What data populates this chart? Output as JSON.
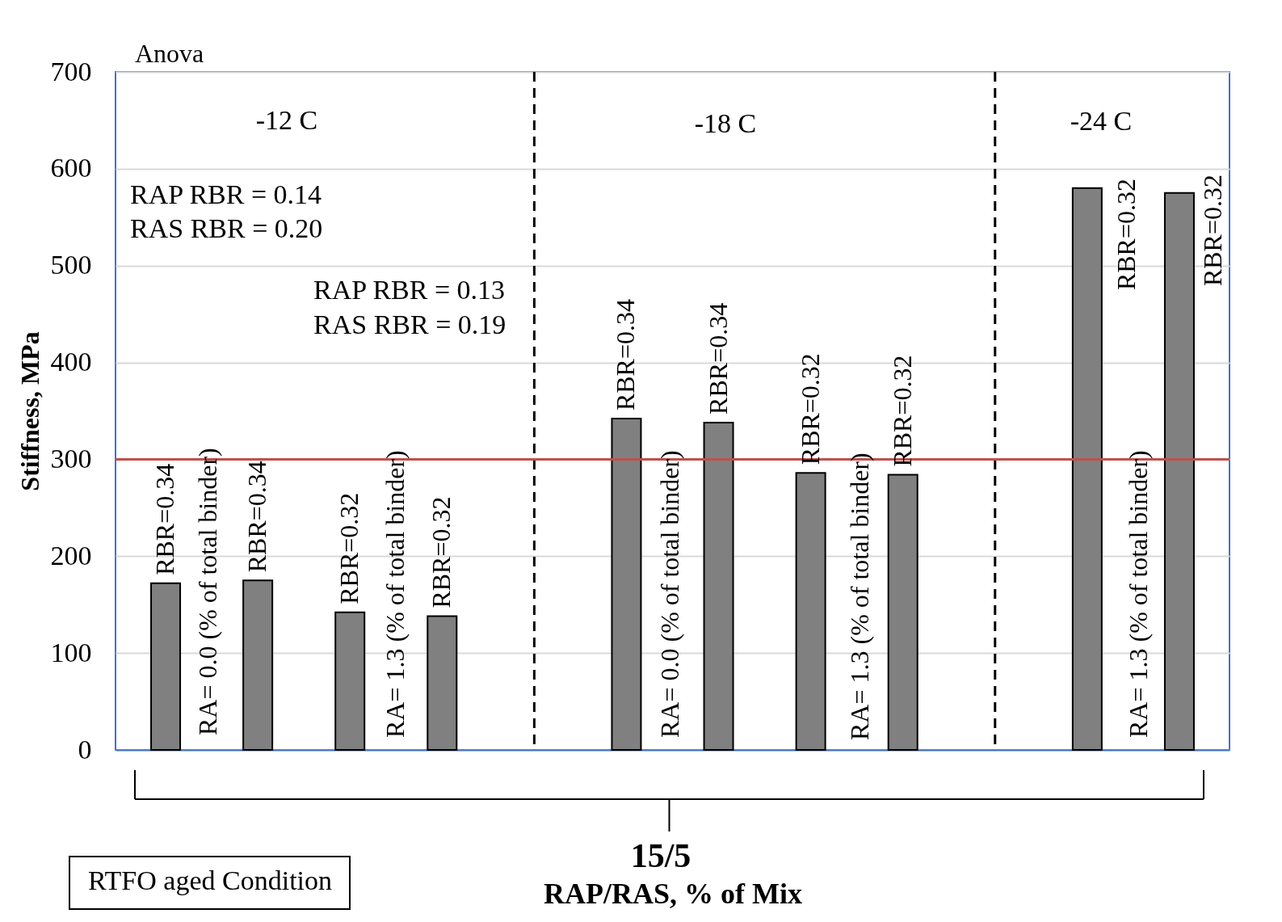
{
  "chart_data": {
    "type": "bar",
    "xlabel": "RAP/RAS, % of Mix",
    "ylabel": "Stiffness, MPa",
    "categories": [
      null,
      null,
      null,
      null,
      null,
      null,
      null,
      null,
      null,
      null
    ],
    "values": [
      172,
      175,
      142,
      138,
      342,
      338,
      286,
      284,
      580,
      575
    ],
    "colors": [
      "#808080",
      "#808080",
      "#808080",
      "#808080",
      "#808080",
      "#808080",
      "#808080",
      "#808080",
      "#808080",
      "#808080"
    ],
    "ylim": [
      0,
      700
    ],
    "yticks": [
      0,
      100,
      200,
      300,
      400,
      500,
      600,
      700
    ],
    "grid": "y",
    "tick_labels": "y",
    "ref_lines": [
      {
        "axis": "y",
        "value": 300,
        "color": "#c0504d",
        "line_style": "solid"
      }
    ],
    "annotations": [
      "Anova",
      "-12  C",
      "RAP RBR = 0.14",
      "RAS RBR = 0.20",
      "RAP RBR = 0.13",
      "RAS RBR = 0.19",
      "-18  C",
      "-24  C",
      "RA= 0.0 (% of total binder)",
      "RA= 1.3 (% of total binder)",
      "RA= 0.0 (% of total binder)",
      "RA= 1.3 (% of total binder)",
      "RA= 1.3 (% of total binder)",
      "15/5",
      "RTFO aged Condition",
      {
        "text": "RBR=0.34",
        "y": 172
      },
      {
        "text": "RBR=0.34",
        "y": 175
      },
      {
        "text": "RBR=0.32",
        "y": 142
      },
      {
        "text": "RBR=0.32",
        "y": 138
      },
      {
        "text": "RBR=0.34",
        "y": 342
      },
      {
        "text": "RBR=0.34",
        "y": 338
      },
      {
        "text": "RBR=0.32",
        "y": 286
      },
      {
        "text": "RBR=0.32",
        "y": 284
      },
      "RBR=0.32",
      "RBR=0.32"
    ]
  }
}
